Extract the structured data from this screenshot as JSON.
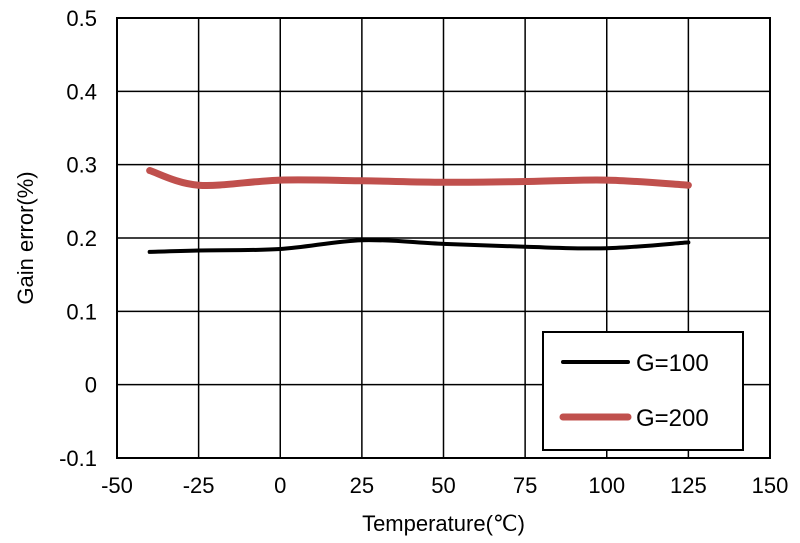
{
  "chart_data": {
    "type": "line",
    "title": "",
    "xlabel": "Temperature(℃)",
    "ylabel": "Gain error(%)",
    "xlim": [
      -50,
      150
    ],
    "ylim": [
      -0.1,
      0.5
    ],
    "x_ticks": [
      -50,
      -25,
      0,
      25,
      50,
      75,
      100,
      125,
      150
    ],
    "x_tick_labels": [
      "-50",
      "-25",
      "0",
      "25",
      "50",
      "75",
      "100",
      "125",
      "150"
    ],
    "y_ticks": [
      -0.1,
      0,
      0.1,
      0.2,
      0.3,
      0.4,
      0.5
    ],
    "y_tick_labels": [
      "-0.1",
      "0",
      "0.1",
      "0.2",
      "0.3",
      "0.4",
      "0.5"
    ],
    "grid": true,
    "legend_position": "bottom-right",
    "series": [
      {
        "name": "G=100",
        "color": "#000000",
        "x": [
          -40,
          -25,
          0,
          25,
          50,
          75,
          100,
          125
        ],
        "values": [
          0.181,
          0.183,
          0.185,
          0.197,
          0.192,
          0.188,
          0.186,
          0.194
        ]
      },
      {
        "name": "G=200",
        "color": "#c0504d",
        "x": [
          -40,
          -25,
          0,
          25,
          50,
          75,
          100,
          125
        ],
        "values": [
          0.292,
          0.272,
          0.279,
          0.278,
          0.276,
          0.277,
          0.279,
          0.272
        ]
      }
    ]
  }
}
